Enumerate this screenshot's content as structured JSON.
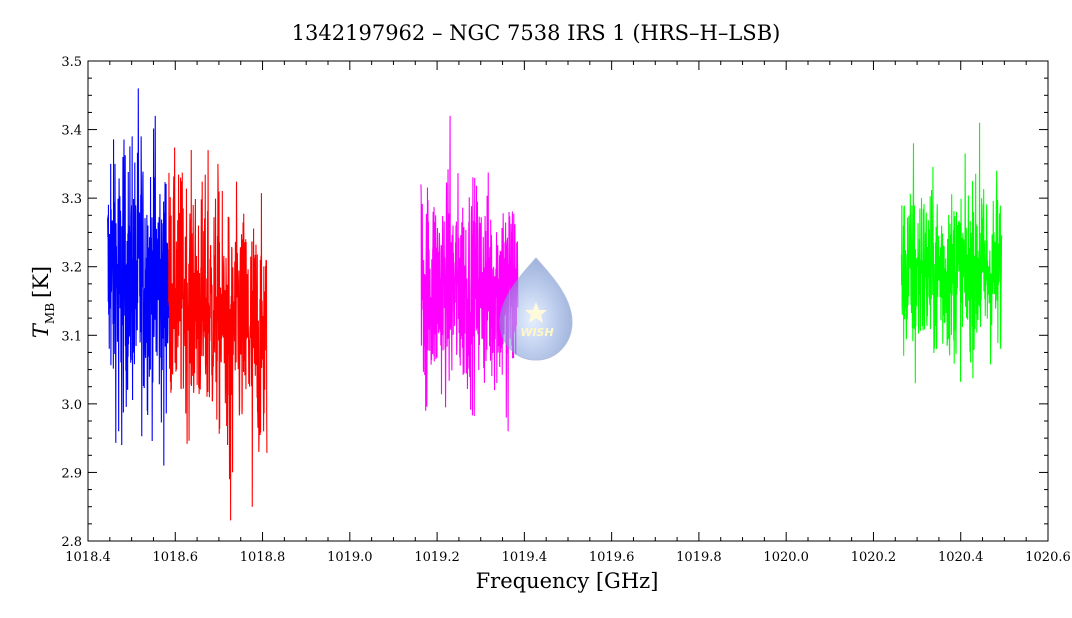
{
  "chart_data": {
    "type": "line",
    "title": "1342197962 – NGC 7538 IRS 1 (HRS–H–LSB)",
    "xlabel": "Frequency [GHz]",
    "ylabel_main": "T",
    "ylabel_sub": "MB",
    "ylabel_unit": "[K]",
    "xlim": [
      1018.4,
      1020.6
    ],
    "ylim": [
      2.8,
      3.5
    ],
    "xticks": [
      "1018.4",
      "1018.6",
      "1018.8",
      "1019.0",
      "1019.2",
      "1019.4",
      "1019.6",
      "1019.8",
      "1020.0",
      "1020.2",
      "1020.4",
      "1020.6"
    ],
    "xtick_values": [
      1018.4,
      1018.6,
      1018.8,
      1019.0,
      1019.2,
      1019.4,
      1019.6,
      1019.8,
      1020.0,
      1020.2,
      1020.4,
      1020.6
    ],
    "yticks": [
      "2.8",
      "2.9",
      "3.0",
      "3.1",
      "3.2",
      "3.3",
      "3.4",
      "3.5"
    ],
    "ytick_values": [
      2.8,
      2.9,
      3.0,
      3.1,
      3.2,
      3.3,
      3.4,
      3.5
    ],
    "x_minor_step": 0.05,
    "y_minor_step": 0.025,
    "series": [
      {
        "color": "#0000ff",
        "x_range": [
          1018.445,
          1018.585
        ],
        "points": 300,
        "mean": 3.18,
        "noise": 0.09,
        "spikes": [
          [
            0.05,
            3.35
          ],
          [
            0.12,
            3.35
          ],
          [
            0.25,
            3.36
          ],
          [
            0.4,
            3.39
          ],
          [
            0.5,
            3.46
          ],
          [
            0.55,
            3.39
          ],
          [
            0.78,
            3.42
          ],
          [
            0.9,
            3.22
          ],
          [
            0.23,
            2.94
          ],
          [
            0.18,
            2.96
          ],
          [
            0.92,
            2.91
          ],
          [
            0.7,
            3.05
          ]
        ]
      },
      {
        "color": "#ff0000",
        "x_range": [
          1018.585,
          1018.81
        ],
        "points": 450,
        "mean": 3.13,
        "noise": 0.085,
        "trend": -0.08,
        "spikes": [
          [
            0.05,
            3.3
          ],
          [
            0.12,
            3.33
          ],
          [
            0.25,
            3.29
          ],
          [
            0.4,
            3.37
          ],
          [
            0.5,
            3.35
          ],
          [
            0.55,
            3.1
          ],
          [
            0.6,
            2.94
          ],
          [
            0.62,
            2.89
          ],
          [
            0.63,
            2.83
          ],
          [
            0.65,
            2.9
          ],
          [
            0.7,
            3.22
          ],
          [
            0.85,
            2.85
          ],
          [
            0.92,
            2.95
          ],
          [
            0.99,
            3.21
          ]
        ]
      },
      {
        "color": "#ff00ff",
        "x_range": [
          1019.163,
          1019.385
        ],
        "points": 430,
        "mean": 3.17,
        "noise": 0.075,
        "spikes": [
          [
            0.0,
            3.32
          ],
          [
            0.3,
            3.42
          ],
          [
            0.05,
            2.99
          ],
          [
            0.25,
            3.08
          ],
          [
            0.6,
            3.24
          ],
          [
            0.75,
            3.2
          ],
          [
            0.85,
            3.23
          ],
          [
            0.88,
            2.98
          ],
          [
            0.9,
            2.96
          ],
          [
            0.99,
            3.22
          ]
        ]
      },
      {
        "color": "#00ff00",
        "x_range": [
          1020.264,
          1020.494
        ],
        "points": 440,
        "mean": 3.19,
        "noise": 0.06,
        "spikes": [
          [
            0.02,
            3.26
          ],
          [
            0.12,
            3.38
          ],
          [
            0.14,
            3.03
          ],
          [
            0.2,
            3.3
          ],
          [
            0.35,
            3.08
          ],
          [
            0.4,
            3.26
          ],
          [
            0.55,
            3.28
          ],
          [
            0.72,
            3.28
          ],
          [
            0.78,
            3.41
          ],
          [
            0.8,
            3.3
          ],
          [
            0.95,
            3.34
          ],
          [
            0.98,
            3.2
          ]
        ]
      }
    ],
    "grid": false,
    "legend": "none",
    "watermark_label": "WISH"
  }
}
